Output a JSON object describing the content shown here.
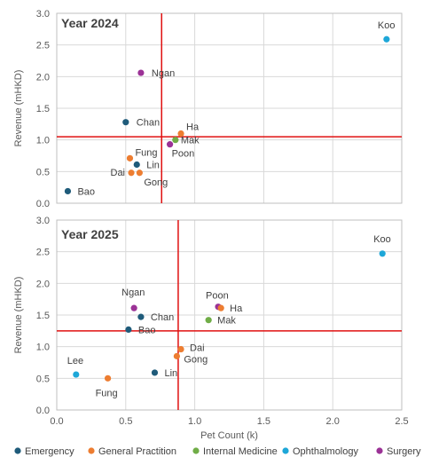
{
  "colors": {
    "Emergency": "#1f5b7a",
    "General Practition": "#ed7d31",
    "Internal Medicine": "#70ad47",
    "Ophthalmology": "#1ea7d8",
    "Surgery": "#9b3296",
    "reference_line": "#e01010",
    "grid": "#d9d9d9"
  },
  "legend": {
    "items": [
      "Emergency",
      "General Practition",
      "Internal Medicine",
      "Ophthalmology",
      "Surgery"
    ]
  },
  "chart_data": [
    {
      "type": "scatter",
      "title": "Year 2024",
      "xlabel": "",
      "ylabel": "Revenue (mHKD)",
      "xlim": [
        0,
        2.5
      ],
      "ylim": [
        0,
        3.0
      ],
      "x_ticks": [
        "0.0",
        "0.5",
        "1.0",
        "1.5",
        "2.0",
        "2.5"
      ],
      "y_ticks": [
        "0.0",
        "0.5",
        "1.0",
        "1.5",
        "2.0",
        "2.5",
        "3.0"
      ],
      "grid": true,
      "reference_lines": {
        "x": 0.76,
        "y": 1.05
      },
      "points": [
        {
          "label": "Koo",
          "category": "Ophthalmology",
          "x": 2.39,
          "y": 2.59
        },
        {
          "label": "Ngan",
          "category": "Surgery",
          "x": 0.61,
          "y": 2.06
        },
        {
          "label": "Chan",
          "category": "Emergency",
          "x": 0.5,
          "y": 1.28
        },
        {
          "label": "Ha",
          "category": "General Practition",
          "x": 0.9,
          "y": 1.1
        },
        {
          "label": "Mak",
          "category": "Internal Medicine",
          "x": 0.86,
          "y": 1.0
        },
        {
          "label": "Poon",
          "category": "Surgery",
          "x": 0.82,
          "y": 0.93
        },
        {
          "label": "Fung",
          "category": "General Practition",
          "x": 0.53,
          "y": 0.71
        },
        {
          "label": "Lin",
          "category": "Emergency",
          "x": 0.58,
          "y": 0.61
        },
        {
          "label": "Dai",
          "category": "General Practition",
          "x": 0.54,
          "y": 0.48
        },
        {
          "label": "Gong",
          "category": "General Practition",
          "x": 0.6,
          "y": 0.48
        },
        {
          "label": "Bao",
          "category": "Emergency",
          "x": 0.08,
          "y": 0.19
        }
      ]
    },
    {
      "type": "scatter",
      "title": "Year 2025",
      "xlabel": "Pet Count (k)",
      "ylabel": "Revenue (mHKD)",
      "xlim": [
        0,
        2.5
      ],
      "ylim": [
        0,
        3.0
      ],
      "x_ticks": [
        "0.0",
        "0.5",
        "1.0",
        "1.5",
        "2.0",
        "2.5"
      ],
      "y_ticks": [
        "0.0",
        "0.5",
        "1.0",
        "1.5",
        "2.0",
        "2.5",
        "3.0"
      ],
      "grid": true,
      "reference_lines": {
        "x": 0.88,
        "y": 1.25
      },
      "points": [
        {
          "label": "Koo",
          "category": "Ophthalmology",
          "x": 2.36,
          "y": 2.47
        },
        {
          "label": "Poon",
          "category": "Surgery",
          "x": 1.17,
          "y": 1.63
        },
        {
          "label": "Ha",
          "category": "General Practition",
          "x": 1.19,
          "y": 1.61
        },
        {
          "label": "Mak",
          "category": "Internal Medicine",
          "x": 1.1,
          "y": 1.42
        },
        {
          "label": "Ngan",
          "category": "Surgery",
          "x": 0.56,
          "y": 1.61
        },
        {
          "label": "Chan",
          "category": "Emergency",
          "x": 0.61,
          "y": 1.47
        },
        {
          "label": "Bao",
          "category": "Emergency",
          "x": 0.52,
          "y": 1.27
        },
        {
          "label": "Dai",
          "category": "General Practition",
          "x": 0.9,
          "y": 0.96
        },
        {
          "label": "Gong",
          "category": "General Practition",
          "x": 0.87,
          "y": 0.85
        },
        {
          "label": "Lin",
          "category": "Emergency",
          "x": 0.71,
          "y": 0.59
        },
        {
          "label": "Lee",
          "category": "Ophthalmology",
          "x": 0.14,
          "y": 0.56
        },
        {
          "label": "Fung",
          "category": "General Practition",
          "x": 0.37,
          "y": 0.5
        }
      ]
    }
  ]
}
